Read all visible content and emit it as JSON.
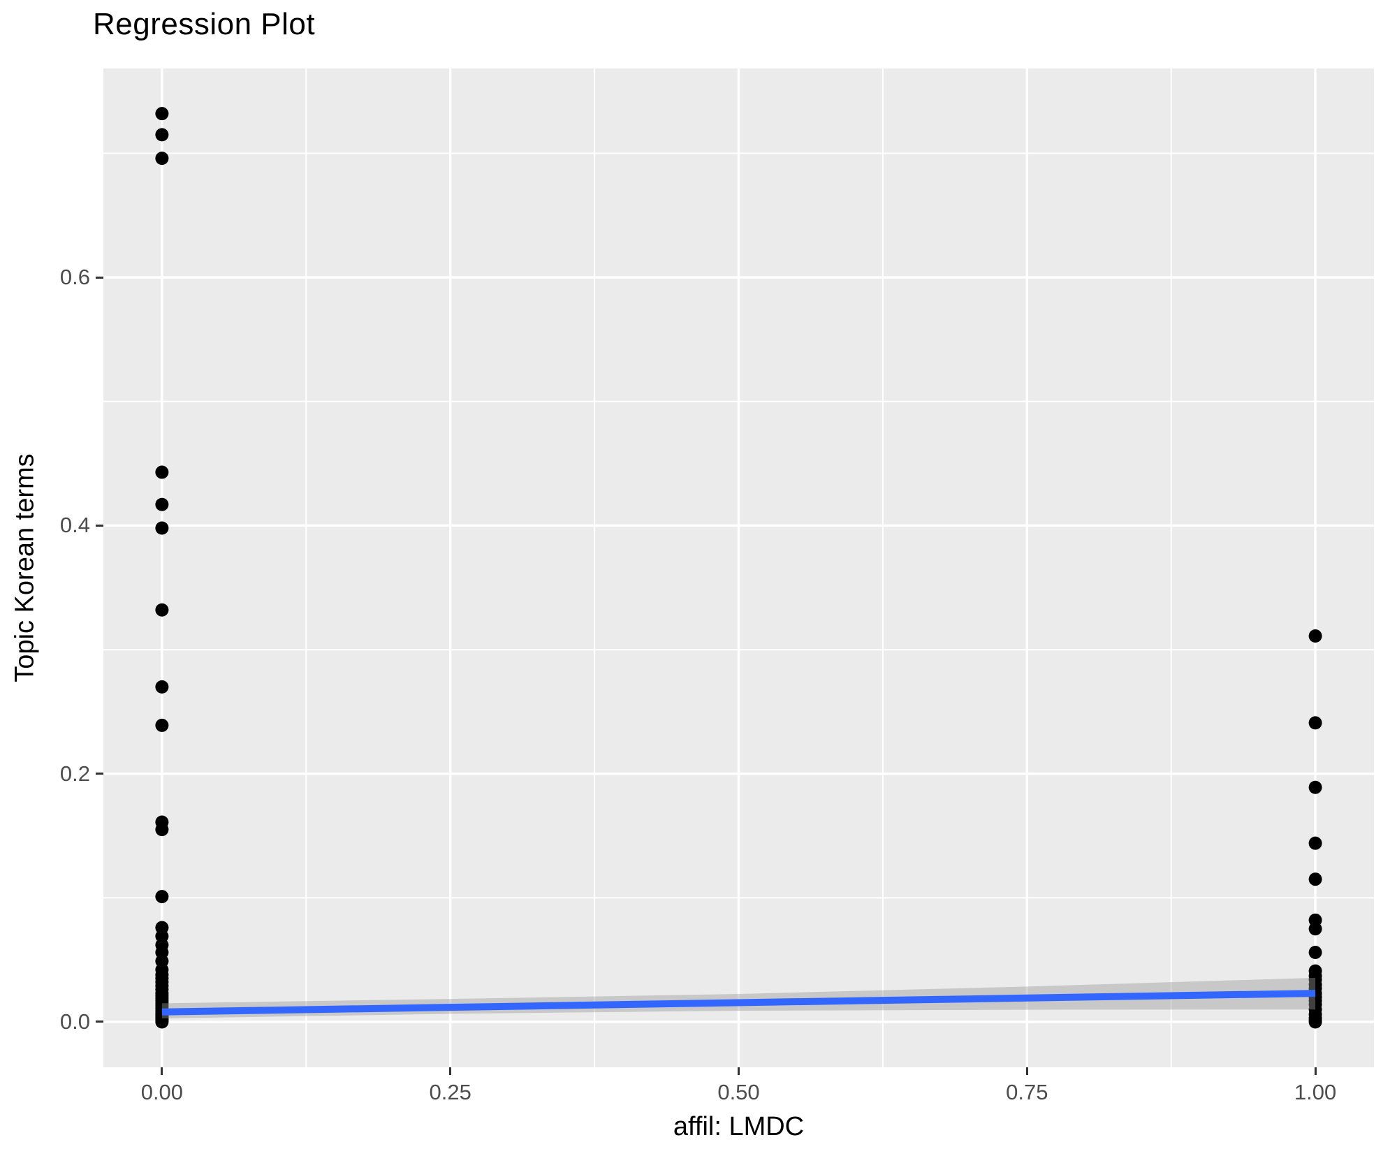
{
  "title": "Regression Plot",
  "chart_data": {
    "type": "scatter",
    "title": "Regression Plot",
    "xlabel": "affil: LMDC",
    "ylabel": "Topic Korean terms",
    "xlim": [
      -0.0508,
      1.0508
    ],
    "ylim": [
      -0.0366,
      0.7684
    ],
    "grid": "on",
    "legend": "none",
    "x_ticks": [
      {
        "value": 0.0,
        "label": "0.00"
      },
      {
        "value": 0.25,
        "label": "0.25"
      },
      {
        "value": 0.5,
        "label": "0.50"
      },
      {
        "value": 0.75,
        "label": "0.75"
      },
      {
        "value": 1.0,
        "label": "1.00"
      }
    ],
    "y_ticks": [
      {
        "value": 0.0,
        "label": "0.0"
      },
      {
        "value": 0.2,
        "label": "0.2"
      },
      {
        "value": 0.4,
        "label": "0.4"
      },
      {
        "value": 0.6,
        "label": "0.6"
      }
    ],
    "x_minor": [
      0.125,
      0.375,
      0.625,
      0.875
    ],
    "y_minor": [
      0.1,
      0.3,
      0.5,
      0.7
    ],
    "points": [
      {
        "x": 0,
        "ys": [
          0.732,
          0.715,
          0.696,
          0.443,
          0.417,
          0.398,
          0.332,
          0.27,
          0.239,
          0.161,
          0.155,
          0.101,
          0.076,
          0.069,
          0.062,
          0.056,
          0.049,
          0.042,
          0.038,
          0.035,
          0.032,
          0.029,
          0.026,
          0.023,
          0.021,
          0.019,
          0.017,
          0.015,
          0.013,
          0.011,
          0.009,
          0.007,
          0.006,
          0.005,
          0.004,
          0.003,
          0.002,
          0.001,
          0.0
        ]
      },
      {
        "x": 1,
        "ys": [
          0.311,
          0.241,
          0.189,
          0.144,
          0.115,
          0.082,
          0.075,
          0.056,
          0.041,
          0.037,
          0.034,
          0.03,
          0.027,
          0.023,
          0.02,
          0.017,
          0.014,
          0.01,
          0.006,
          0.003,
          0.001,
          0.0
        ]
      }
    ],
    "regression_line": {
      "x1": 0,
      "y1": 0.008,
      "x2": 1,
      "y2": 0.023
    },
    "ci_band": {
      "x": [
        0.0,
        0.25,
        0.5,
        0.75,
        1.0
      ],
      "upper": [
        0.015,
        0.0185,
        0.0225,
        0.0285,
        0.0355
      ],
      "lower": [
        0.0028,
        0.0065,
        0.009,
        0.0098,
        0.01
      ]
    },
    "colors": {
      "panel_background": "#EBEBEB",
      "gridline": "#FFFFFF",
      "point": "#000000",
      "regression_line": "#3366FF",
      "ci_band": "#999999",
      "tick_text": "#4D4D4D",
      "tick_mark": "#333333",
      "title_text": "#000000"
    }
  }
}
